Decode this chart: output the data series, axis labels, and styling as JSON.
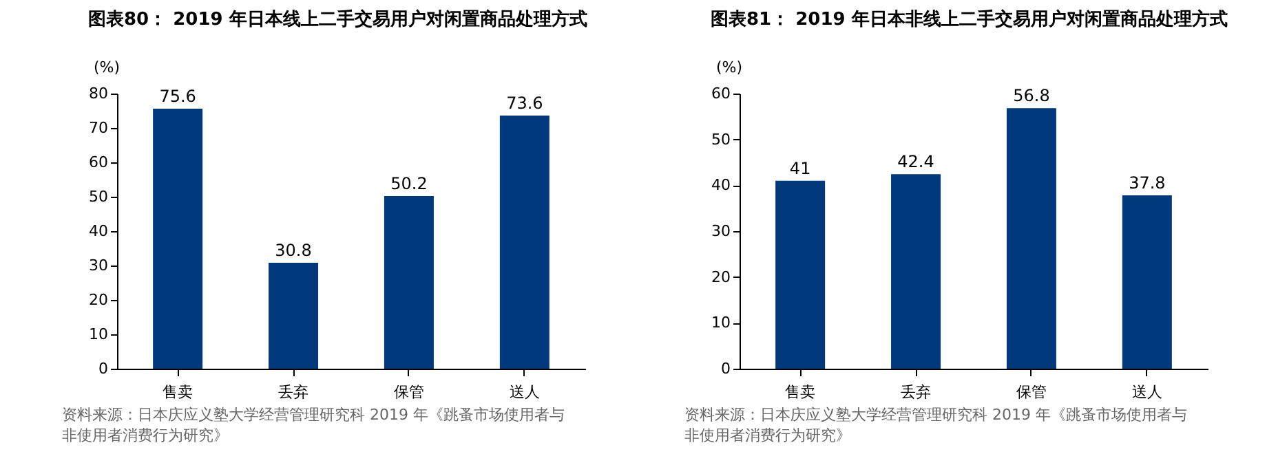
{
  "chart_data": [
    {
      "type": "bar",
      "title": "图表80： 2019 年日本线上二手交易用户对闲置商品处理方式",
      "ylabel": "(%)",
      "categories": [
        "售卖",
        "丢弃",
        "保管",
        "送人"
      ],
      "values": [
        75.6,
        30.8,
        50.2,
        73.6
      ],
      "color": "#003a7d",
      "ylim": [
        0,
        80
      ],
      "yticks": [
        0,
        10,
        20,
        30,
        40,
        50,
        60,
        70,
        80
      ],
      "grid": false,
      "data_labels": true,
      "annotations": [
        "资料来源：日本庆应义塾大学经营管理研究科 2019 年《跳蚤市场使用者与非使用者消费行为研究》"
      ]
    },
    {
      "type": "bar",
      "title": "图表81： 2019 年日本非线上二手交易用户对闲置商品处理方式",
      "ylabel": "(%)",
      "categories": [
        "售卖",
        "丢弃",
        "保管",
        "送人"
      ],
      "values": [
        41,
        42.4,
        56.8,
        37.8
      ],
      "color": "#003a7d",
      "ylim": [
        0,
        60
      ],
      "yticks": [
        0,
        10,
        20,
        30,
        40,
        50,
        60
      ],
      "grid": false,
      "data_labels": true,
      "annotations": [
        "资料来源：日本庆应义塾大学经营管理研究科 2019 年《跳蚤市场使用者与非使用者消费行为研究》"
      ]
    }
  ]
}
